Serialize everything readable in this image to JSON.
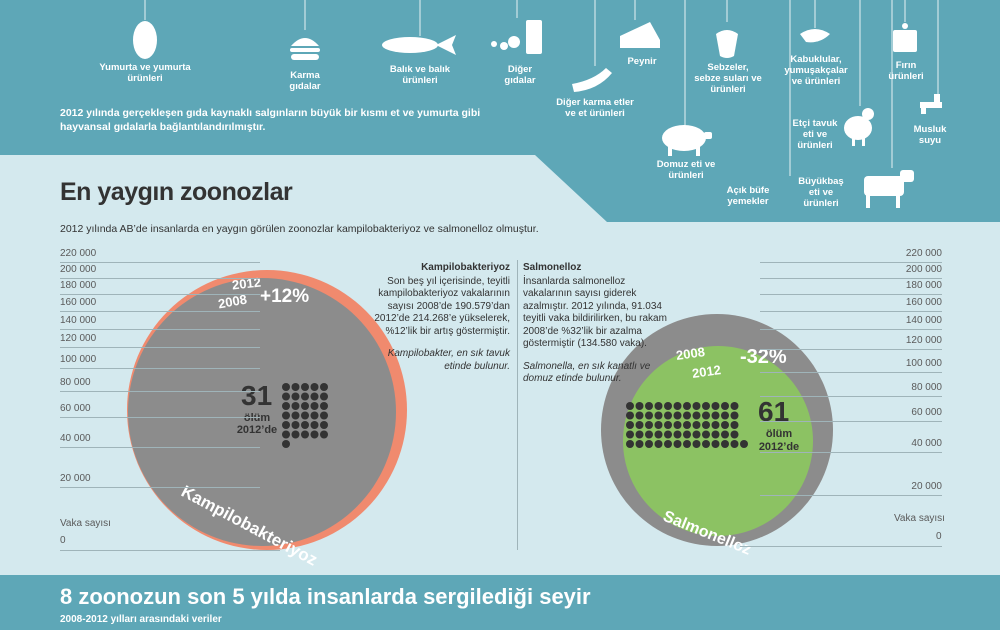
{
  "colors": {
    "teal": "#5ea7b7",
    "light_bg": "#d4e9ee",
    "orange": "#f08a6e",
    "grey_circle": "#8c8c8c",
    "green": "#8cc263",
    "dot": "#333333"
  },
  "header": {
    "foods": [
      {
        "label": "Yumurta ve yumurta\nürünleri",
        "icon": "egg-icon"
      },
      {
        "label": "Karma\ngıdalar",
        "icon": "burger-icon"
      },
      {
        "label": "Balık ve balık\nürünleri",
        "icon": "fish-icon"
      },
      {
        "label": "Diğer\ngıdalar",
        "icon": "other-foods-icon"
      },
      {
        "label": "Diğer karma etler\nve et ürünleri",
        "icon": "sausage-icon"
      },
      {
        "label": "Peynir",
        "icon": "cheese-icon"
      },
      {
        "label": "Domuz eti ve\nürünleri",
        "icon": "pig-icon"
      },
      {
        "label": "Açık büfe\nyemekler",
        "icon": "buffet-icon"
      },
      {
        "label": "Sebzeler,\nsebze suları ve\nürünleri",
        "icon": "pepper-icon"
      },
      {
        "label": "Kabuklular,\nyumuşakçalar\nve ürünleri",
        "icon": "shrimp-icon"
      },
      {
        "label": "Etçi tavuk\neti ve\nürünleri",
        "icon": "chicken-icon"
      },
      {
        "label": "Büyükbaş\neti ve\nürünleri",
        "icon": "cow-icon"
      },
      {
        "label": "Fırın\nürünleri",
        "icon": "cake-icon"
      },
      {
        "label": "Musluk\nsuyu",
        "icon": "tap-icon"
      }
    ],
    "intro": "2012 yılında gerçekleşen gıda kaynaklı salgınların büyük bir kısmı et ve yumurta gibi hayvansal gıdalarla bağlantılandırılmıştır."
  },
  "section1": {
    "title": "En yaygın zoonozlar",
    "subtitle": "2012 yılında AB’de insanlarda en yaygın görülen zoonozlar kampilobakteriyoz ve salmonelloz olmuştur.",
    "axis_ticks": [
      "220 000",
      "200 000",
      "180 000",
      "160 000",
      "140 000",
      "120 000",
      "100 000",
      "80 000",
      "60 000",
      "40 000",
      "20 000"
    ],
    "axis_zero": "0",
    "axis_title": "Vaka sayısı"
  },
  "campy": {
    "name": "Kampilobakteriyoz",
    "year_new": "2012",
    "year_old": "2008",
    "change": "+12%",
    "deaths": "31",
    "deaths_label": "ölüm",
    "deaths_year": "2012’de",
    "desc_title": "Kampilobakteriyoz",
    "desc_body": "Son beş yıl içerisinde, teyitli kampilobakteriyoz vakalarının sayısı 2008’de 190.579’dan 2012’de 214.268’e yükselerek, %12’lik bir artış göstermiştir.",
    "desc_note": "Kampilobakter, en sık tavuk etinde bulunur."
  },
  "salmo": {
    "name": "Salmonelloz",
    "year_old": "2008",
    "year_new": "2012",
    "change": "-32%",
    "deaths": "61",
    "deaths_label": "ölüm",
    "deaths_year": "2012’de",
    "desc_title": "Salmonelloz",
    "desc_body": "İnsanlarda salmonelloz vakalarının sayısı giderek azalmıştır. 2012 yılında, 91.034 teyitli vaka bildirilirken, bu rakam 2008’de %32’lik bir azalma göstermiştir (134.580 vaka).",
    "desc_note": "Salmonella, en sık kanatlı ve domuz etinde bulunur."
  },
  "section2": {
    "title": "8 zoonozun son 5 yılda insanlarda sergilediği seyir",
    "subtitle": "2008-2012 yılları arasındaki veriler"
  },
  "chart_data": {
    "type": "bubble",
    "unit": "Vaka sayısı",
    "series": [
      {
        "name": "Kampilobakteriyoz",
        "values": {
          "2008": 190579,
          "2012": 214268
        },
        "change": "+12%",
        "deaths_2012": 31
      },
      {
        "name": "Salmonelloz",
        "values": {
          "2008": 134580,
          "2012": 91034
        },
        "change": "-32%",
        "deaths_2012": 61
      }
    ],
    "ylim": [
      0,
      220000
    ]
  }
}
